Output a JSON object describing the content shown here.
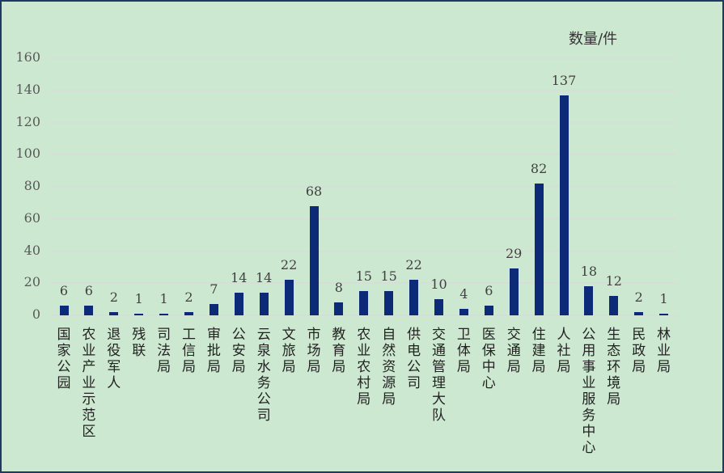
{
  "chart_data": {
    "type": "bar",
    "title": "",
    "xlabel": "",
    "ylabel": "数量/件",
    "ylim": [
      0,
      160
    ],
    "yticks": [
      0,
      20,
      40,
      60,
      80,
      100,
      120,
      140,
      160
    ],
    "grid": true,
    "legend": null,
    "bar_color": "#0c2a78",
    "background": "#cde8d0",
    "categories": [
      "国家公园",
      "农业产业示范区",
      "退役军人",
      "残联",
      "司法局",
      "工信局",
      "审批局",
      "公安局",
      "云泉水务公司",
      "文旅局",
      "市场局",
      "教育局",
      "农业农村局",
      "自然资源局",
      "供电公司",
      "交通管理大队",
      "卫体局",
      "医保中心",
      "交通局",
      "住建局",
      "人社局",
      "公用事业服务中心",
      "生态环境局",
      "民政局",
      "林业局"
    ],
    "values": [
      6,
      6,
      2,
      1,
      1,
      2,
      7,
      14,
      14,
      22,
      68,
      8,
      15,
      15,
      22,
      10,
      4,
      6,
      29,
      82,
      137,
      18,
      12,
      2,
      1
    ]
  },
  "labels": {
    "unit": "数量/件",
    "yticks": [
      "0",
      "20",
      "40",
      "60",
      "80",
      "100",
      "120",
      "140",
      "160"
    ],
    "values": [
      "6",
      "6",
      "2",
      "1",
      "1",
      "2",
      "7",
      "14",
      "14",
      "22",
      "68",
      "8",
      "15",
      "15",
      "22",
      "10",
      "4",
      "6",
      "29",
      "82",
      "137",
      "18",
      "12",
      "2",
      "1"
    ],
    "categories": [
      "国家公园",
      "农业产业示范区",
      "退役军人",
      "残联",
      "司法局",
      "工信局",
      "审批局",
      "公安局",
      "云泉水务公司",
      "文旅局",
      "市场局",
      "教育局",
      "农业农村局",
      "自然资源局",
      "供电公司",
      "交通管理大队",
      "卫体局",
      "医保中心",
      "交通局",
      "住建局",
      "人社局",
      "公用事业服务中心",
      "生态环境局",
      "民政局",
      "林业局"
    ]
  }
}
